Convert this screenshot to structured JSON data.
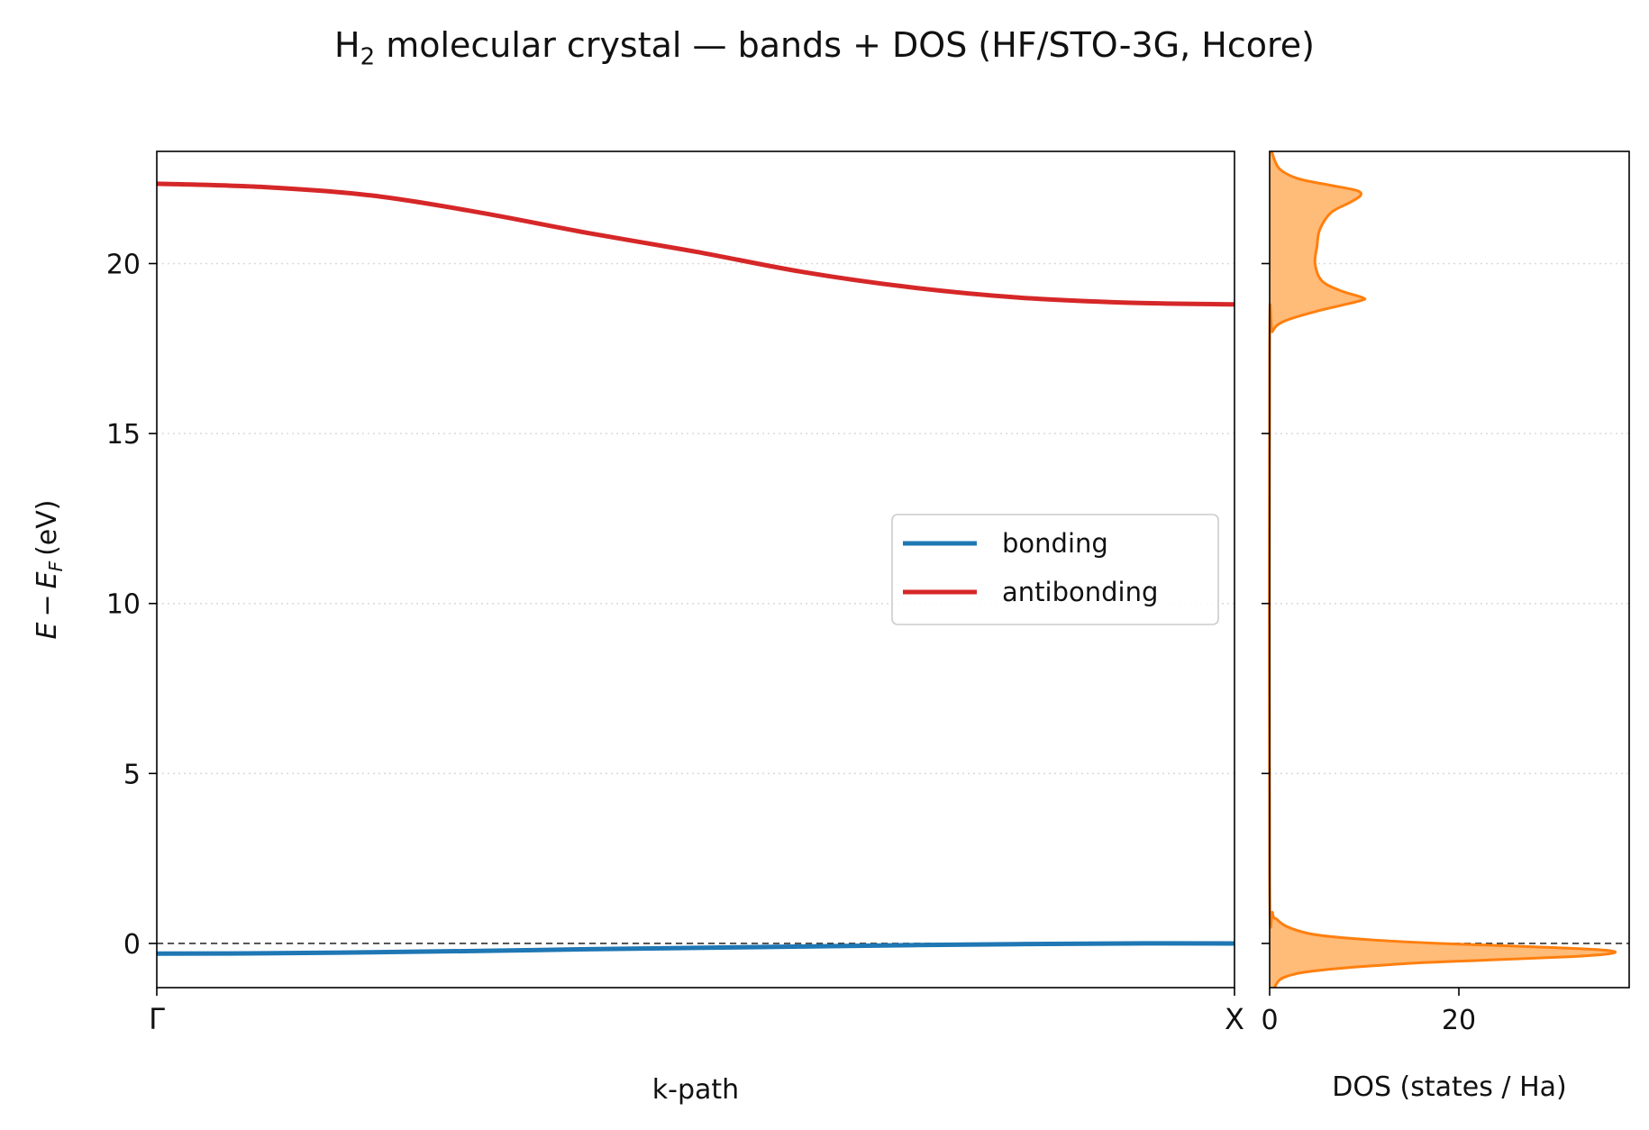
{
  "title": {
    "prefix": "H",
    "subscript": "2",
    "rest": " molecular crystal — bands + DOS (HF/STO-3G, Hcore)"
  },
  "chart_data": [
    {
      "type": "line",
      "xlabel": "k-path",
      "ylabel": "E − E_F (eV)",
      "ylabel_parts": {
        "E": "E",
        "minus": "−",
        "EF": "E",
        "sub": "F",
        "unit": "(eV)"
      },
      "xlim": [
        0,
        1
      ],
      "ylim": [
        -1.3,
        23.3
      ],
      "x_ticks": [
        {
          "value": 0,
          "label": "Γ"
        },
        {
          "value": 1,
          "label": "X"
        }
      ],
      "y_ticks": [
        {
          "value": 0,
          "label": "0"
        },
        {
          "value": 5,
          "label": "5"
        },
        {
          "value": 10,
          "label": "10"
        },
        {
          "value": 15,
          "label": "15"
        },
        {
          "value": 20,
          "label": "20"
        }
      ],
      "grid": "horizontal dotted",
      "fermi_level": 0,
      "legend": {
        "placement": "center-right"
      },
      "series": [
        {
          "name": "bonding",
          "color": "#1f77b4",
          "x": [
            0,
            0.1,
            0.2,
            0.3,
            0.4,
            0.5,
            0.6,
            0.7,
            0.8,
            0.9,
            1.0
          ],
          "y": [
            -0.3,
            -0.29,
            -0.26,
            -0.22,
            -0.17,
            -0.13,
            -0.09,
            -0.05,
            -0.02,
            0.0,
            0.0
          ]
        },
        {
          "name": "antibonding",
          "color": "#d62728",
          "x": [
            0,
            0.1,
            0.2,
            0.3,
            0.4,
            0.5,
            0.6,
            0.7,
            0.8,
            0.9,
            1.0
          ],
          "y": [
            22.35,
            22.25,
            22.0,
            21.5,
            20.9,
            20.35,
            19.75,
            19.3,
            19.0,
            18.85,
            18.8
          ]
        }
      ]
    },
    {
      "type": "area",
      "xlabel": "DOS (states / Ha)",
      "xlim": [
        0,
        38
      ],
      "ylim": [
        -1.3,
        23.3
      ],
      "x_ticks": [
        {
          "value": 0,
          "label": "0"
        },
        {
          "value": 20,
          "label": "20"
        }
      ],
      "fermi_level": 0,
      "color": "#ff7f0e",
      "fill_color": "#ffbb78",
      "series": [
        {
          "name": "",
          "energy": [
            -1.3,
            -1.0,
            -0.8,
            -0.6,
            -0.5,
            -0.4,
            -0.3,
            -0.2,
            -0.1,
            0.0,
            0.1,
            0.2,
            0.3,
            0.5,
            0.7,
            0.9,
            2.0,
            17.5,
            18.0,
            18.3,
            18.6,
            18.9,
            19.0,
            19.2,
            19.5,
            20.0,
            20.5,
            21.0,
            21.5,
            21.8,
            22.0,
            22.15,
            22.3,
            22.5,
            22.8,
            23.3
          ],
          "dos": [
            0.5,
            1.5,
            5.0,
            14.0,
            22.0,
            31.0,
            36.0,
            35.5,
            28.0,
            18.0,
            11.0,
            6.5,
            4.0,
            1.8,
            0.8,
            0.3,
            0.0,
            0.0,
            0.3,
            1.5,
            5.0,
            9.5,
            9.8,
            7.5,
            5.5,
            4.8,
            5.0,
            5.3,
            6.5,
            8.5,
            9.6,
            9.2,
            6.5,
            3.0,
            1.0,
            0.2
          ]
        }
      ]
    }
  ]
}
